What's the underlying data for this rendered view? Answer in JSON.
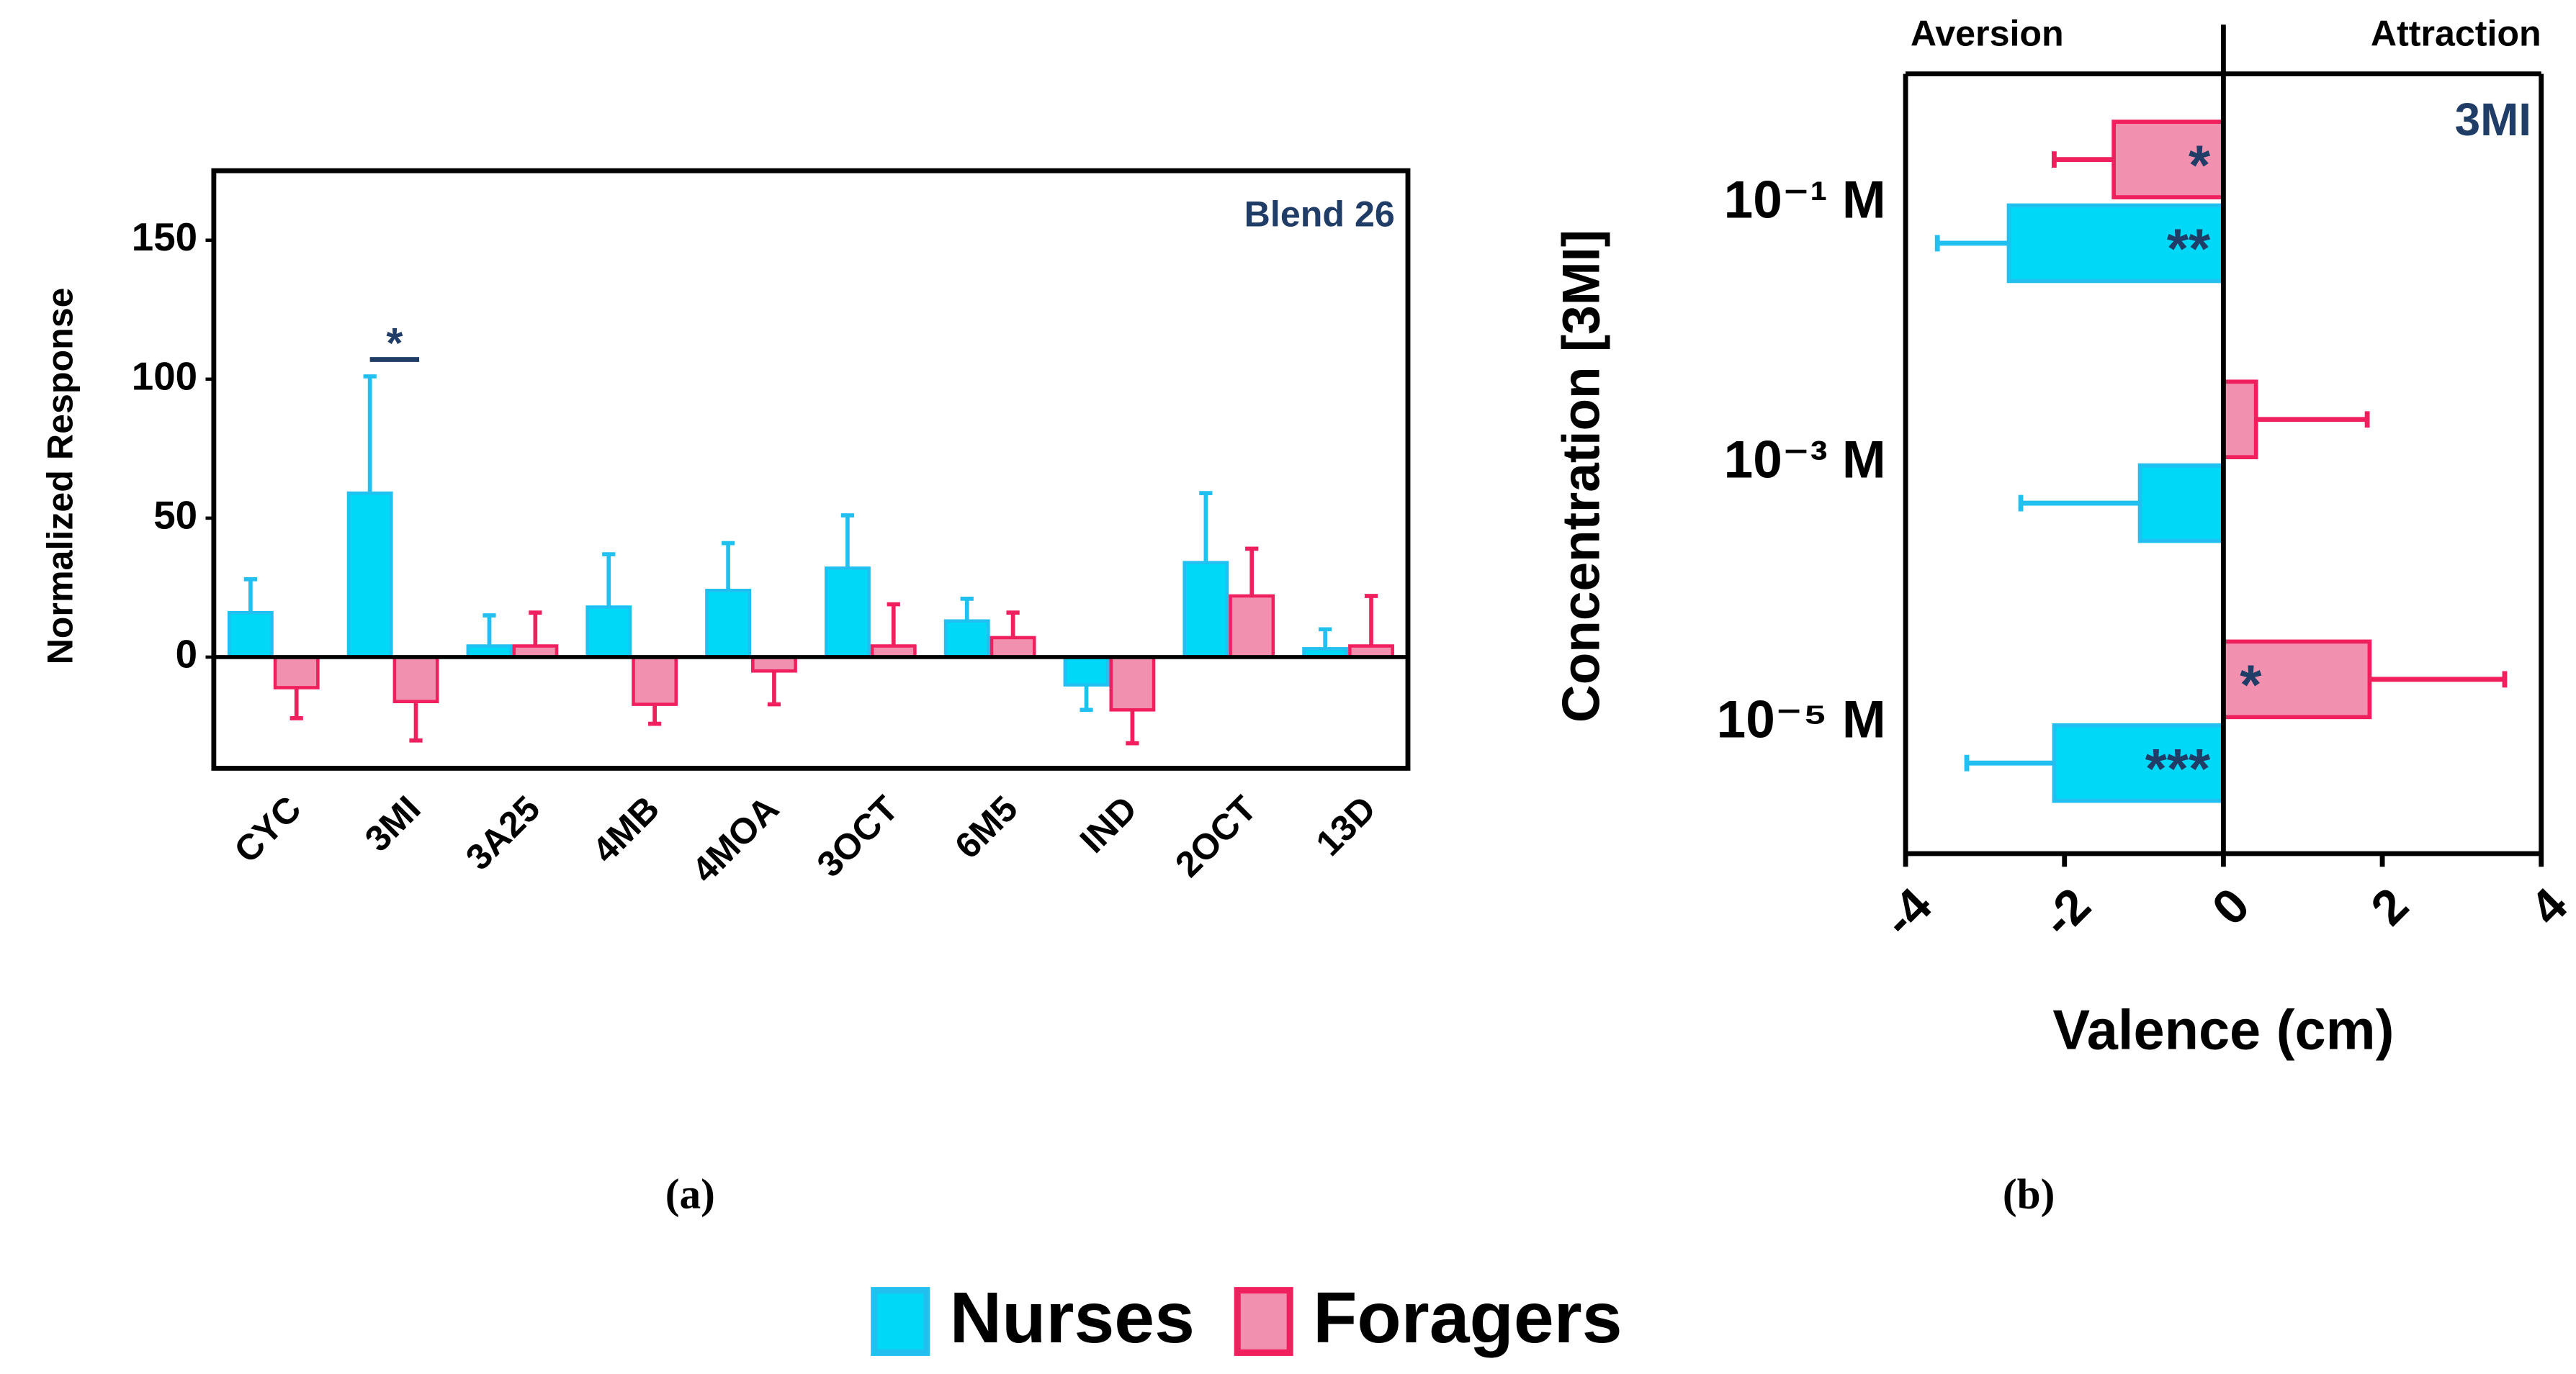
{
  "chart_data": [
    {
      "type": "bar",
      "caption": "(a)",
      "ylabel": "Normalized Response",
      "label": "Blend 26",
      "annotation": "*",
      "categories": [
        "CYC",
        "3MI",
        "3A25",
        "4MB",
        "4MOA",
        "3OCT",
        "6M5",
        "IND",
        "2OCT",
        "13D"
      ],
      "series": [
        {
          "name": "Nurses",
          "color": "#00d8f8",
          "edgecolor": "#22c0f0",
          "values": [
            16,
            59,
            4,
            18,
            24,
            32,
            13,
            -10,
            34,
            3
          ],
          "errors": [
            12,
            42,
            11,
            19,
            17,
            19,
            8,
            9,
            25,
            7
          ]
        },
        {
          "name": "Foragers",
          "color": "#f290b0",
          "edgecolor": "#f0205e",
          "values": [
            -11,
            -16,
            4,
            -17,
            -5,
            4,
            7,
            -19,
            22,
            4
          ],
          "errors": [
            11,
            14,
            12,
            7,
            12,
            15,
            9,
            12,
            17,
            18
          ]
        }
      ],
      "ylim": [
        -40,
        175
      ],
      "yticks": [
        0,
        50,
        100,
        150
      ]
    },
    {
      "type": "barh",
      "caption": "(b)",
      "xlabel": "Valence (cm)",
      "ylabel": "Concentration [3MI]",
      "label": "3MI",
      "left_label": "Aversion",
      "right_label": "Attraction",
      "categories": [
        "10⁻¹ M",
        "10⁻³ M",
        "10⁻⁵ M"
      ],
      "series": [
        {
          "name": "Nurses",
          "color": "#00d8f8",
          "edgecolor": "#22c0f0",
          "values": [
            -2.7,
            -1.05,
            -2.13
          ],
          "errors": [
            0.9,
            1.5,
            1.1
          ],
          "significance": [
            "**",
            null,
            "***"
          ]
        },
        {
          "name": "Foragers",
          "color": "#f290b0",
          "edgecolor": "#f0205e",
          "values": [
            -1.38,
            0.41,
            1.84
          ],
          "errors": [
            0.75,
            1.4,
            1.7
          ],
          "significance": [
            "*",
            null,
            "*"
          ]
        }
      ],
      "xlim": [
        -4,
        4
      ],
      "xticks": [
        -4,
        -2,
        0,
        2,
        4
      ]
    }
  ]
}
